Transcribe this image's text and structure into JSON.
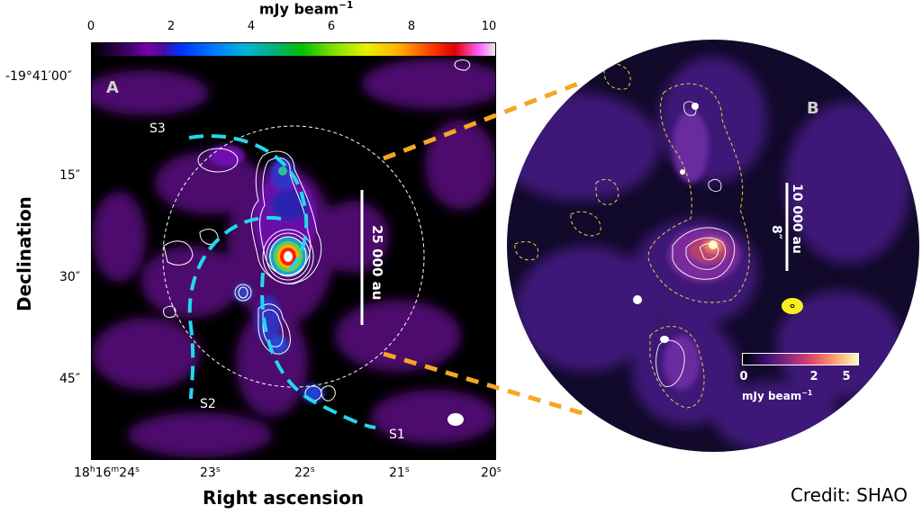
{
  "colorbar": {
    "title": "mJy beam",
    "title_exp": "−1",
    "ticks": [
      "0",
      "2",
      "4",
      "6",
      "8",
      "10"
    ]
  },
  "panel_a": {
    "label": "A",
    "dec_ticks": [
      "-19°41′00″",
      "15″",
      "30″",
      "45″"
    ],
    "ra_ticks": [
      {
        "main": "18",
        "sup1": "h",
        "mid": "16",
        "sup2": "m",
        "end": "24",
        "sup3": "s"
      },
      {
        "main": "23",
        "sup3": "s"
      },
      {
        "main": "22",
        "sup3": "s"
      },
      {
        "main": "21",
        "sup3": "s"
      },
      {
        "main": "20",
        "sup3": "s"
      }
    ],
    "xlabel": "Right ascension",
    "ylabel": "Declination",
    "scalebar": "25 000 au",
    "streamers": [
      "S3",
      "S2",
      "S1"
    ]
  },
  "panel_b": {
    "label": "B",
    "scalebar_au": "10 000 au",
    "scalebar_arcsec": "8″",
    "colorbar_ticks": [
      "0",
      "2",
      "5"
    ],
    "colorbar_title": "mJy beam",
    "colorbar_exp": "−1"
  },
  "credit": "Credit: SHAO",
  "colors": {
    "streamer": "#22d8ee",
    "connector": "#f5a623",
    "background": "#000000"
  }
}
